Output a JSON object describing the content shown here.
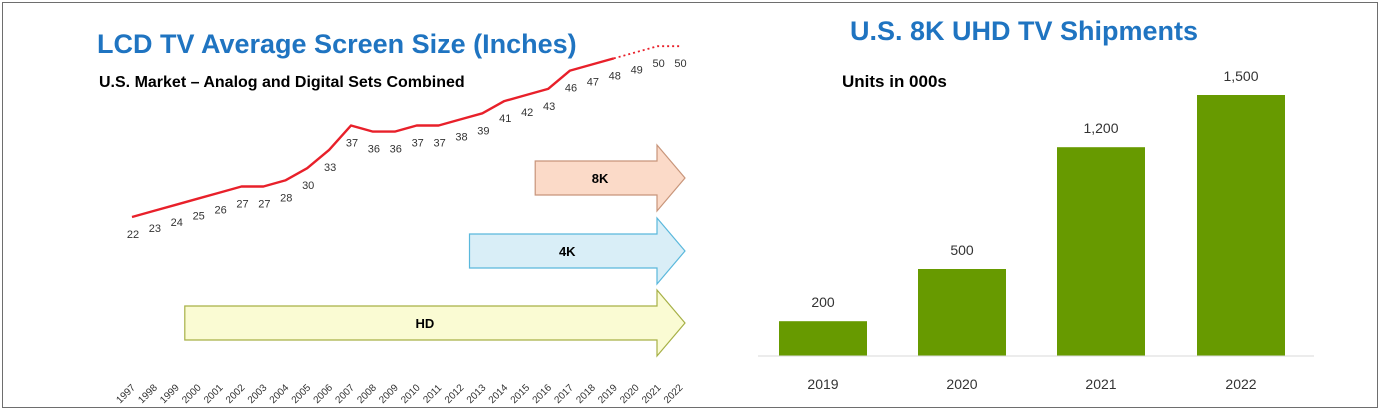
{
  "colors": {
    "title": "#1f74c1",
    "line": "#e8202a",
    "bar": "#679a00",
    "arrow_8k_fill": "#fbdac8",
    "arrow_8k_stroke": "#c8957a",
    "arrow_4k_fill": "#d9eef7",
    "arrow_4k_stroke": "#5ab8dc",
    "arrow_hd_fill": "#fafbd3",
    "arrow_hd_stroke": "#a6b046"
  },
  "left_chart": {
    "title": "LCD TV Average Screen Size (Inches)",
    "subtitle": "U.S. Market – Analog and Digital Sets Combined",
    "arrows": [
      {
        "label": "8K",
        "start_year": "2015",
        "icon": "arrow-right-icon"
      },
      {
        "label": "4K",
        "start_year": "2012",
        "icon": "arrow-right-icon"
      },
      {
        "label": "HD",
        "start_year": "1999",
        "icon": "arrow-right-icon"
      }
    ]
  },
  "right_chart": {
    "title": "U.S. 8K UHD TV Shipments",
    "subtitle": "Units in 000s"
  },
  "chart_data": [
    {
      "type": "line",
      "title": "LCD TV Average Screen Size (Inches)",
      "subtitle": "U.S. Market – Analog and Digital Sets Combined",
      "x": [
        "1997",
        "1998",
        "1999",
        "2000",
        "2001",
        "2002",
        "2003",
        "2004",
        "2005",
        "2006",
        "2007",
        "2008",
        "2009",
        "2010",
        "2011",
        "2012",
        "2013",
        "2014",
        "2015",
        "2016",
        "2017",
        "2018",
        "2019",
        "2020",
        "2021",
        "2022"
      ],
      "series": [
        {
          "values": [
            22,
            23,
            24,
            25,
            26,
            27,
            27,
            28,
            30,
            33,
            37,
            36,
            36,
            37,
            37,
            38,
            39,
            41,
            42,
            43,
            46,
            47,
            48,
            49,
            50,
            50
          ]
        }
      ],
      "forecast_from": "2019",
      "ylim": [
        20,
        52
      ],
      "xlabel": "",
      "ylabel": "",
      "grid": false
    },
    {
      "type": "bar",
      "title": "U.S. 8K UHD TV Shipments",
      "subtitle": "Units in 000s",
      "categories": [
        "2019",
        "2020",
        "2021",
        "2022"
      ],
      "values": [
        200,
        500,
        1200,
        1500
      ],
      "value_labels": [
        "200",
        "500",
        "1,200",
        "1,500"
      ],
      "ylim": [
        0,
        1500
      ],
      "xlabel": "",
      "ylabel": "",
      "grid": false
    }
  ]
}
